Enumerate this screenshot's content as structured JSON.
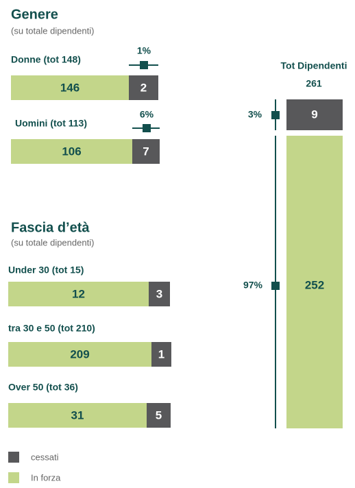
{
  "sections": [
    {
      "title": "Genere",
      "subtitle": "(su totale dipendenti)",
      "groups": [
        {
          "label": "Donne (tot 148)",
          "in_forza": 146,
          "cessati": 2,
          "pct": 1,
          "pct_label": "1%"
        },
        {
          "label": "Uomini (tot 113)",
          "in_forza": 106,
          "cessati": 7,
          "pct": 6,
          "pct_label": "6%"
        }
      ]
    },
    {
      "title": "Fascia d’età",
      "subtitle": "(su totale dipendenti)",
      "groups": [
        {
          "label": "Under 30 (tot 15)",
          "in_forza": 12,
          "cessati": 3
        },
        {
          "label": "tra 30 e 50 (tot 210)",
          "in_forza": 209,
          "cessati": 1
        },
        {
          "label": "Over 50 (tot 36)",
          "in_forza": 31,
          "cessati": 5
        }
      ]
    }
  ],
  "total": {
    "title": "Tot Dipendenti",
    "value": 261,
    "cessati": 9,
    "in_forza": 252,
    "cessati_pct": 3,
    "cessati_pct_label": "3%",
    "in_forza_pct": 97,
    "in_forza_pct_label": "97%"
  },
  "legend": [
    {
      "name": "cessati",
      "color": "#58585a"
    },
    {
      "name": "In forza",
      "color": "#c3d68a"
    }
  ]
}
